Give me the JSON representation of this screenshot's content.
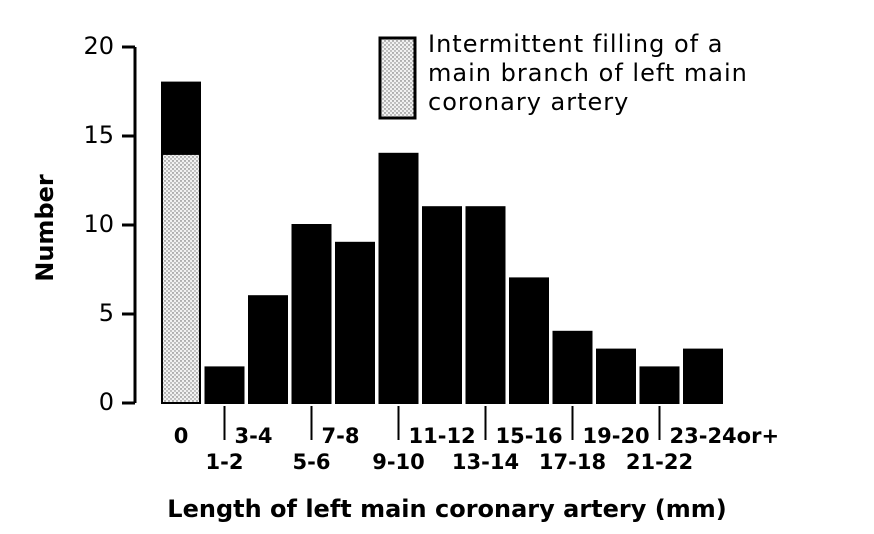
{
  "chart_data": {
    "type": "stacked_bar",
    "y_label": "Number",
    "x_label": "Length of left main coronary artery (mm)",
    "categories": [
      "0",
      "1-2",
      "3-4",
      "5-6",
      "7-8",
      "9-10",
      "11-12",
      "13-14",
      "15-16",
      "17-18",
      "19-20",
      "21-22",
      "23-24or+"
    ],
    "series": [
      {
        "name": "Intermittent filling of a main branch of left main coronary artery",
        "color": "#e6e6e6",
        "pattern": "dots",
        "values": [
          14,
          0,
          0,
          0,
          0,
          0,
          0,
          0,
          0,
          0,
          0,
          0,
          0
        ]
      },
      {
        "color": "#000000",
        "values": [
          4,
          2,
          6,
          10,
          9,
          14,
          11,
          11,
          7,
          4,
          3,
          2,
          3
        ]
      }
    ],
    "ylim": [
      0,
      20
    ],
    "yticks": [
      0,
      5,
      10,
      15,
      20
    ],
    "grid": false
  }
}
